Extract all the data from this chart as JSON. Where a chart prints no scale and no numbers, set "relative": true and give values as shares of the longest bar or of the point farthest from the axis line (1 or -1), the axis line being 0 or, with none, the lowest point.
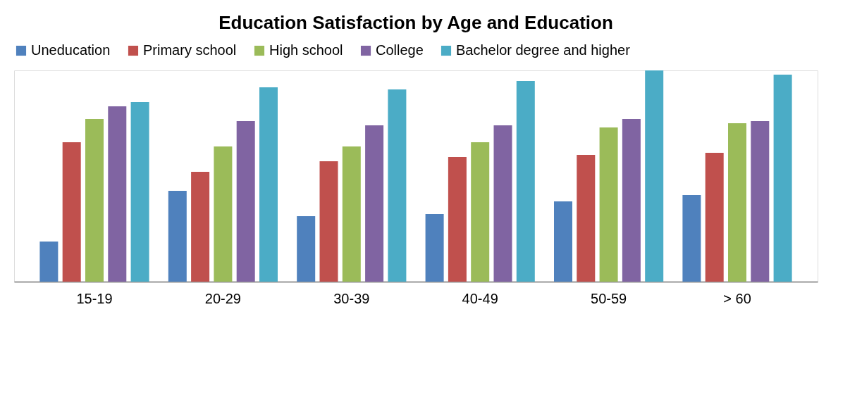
{
  "chart_data": {
    "type": "bar",
    "title": "Education Satisfaction by Age and Education",
    "categories": [
      "15-19",
      "20-29",
      "30-39",
      "40-49",
      "50-59",
      "> 60"
    ],
    "relative": true,
    "legend": "top",
    "grid": false,
    "series": [
      {
        "name": "Uneducation",
        "color": "#4f81bd",
        "values": [
          0.19,
          0.43,
          0.31,
          0.32,
          0.38,
          0.41
        ]
      },
      {
        "name": "Primary school",
        "color": "#c0504d",
        "values": [
          0.66,
          0.52,
          0.57,
          0.59,
          0.6,
          0.61
        ]
      },
      {
        "name": "High school",
        "color": "#9bbb59",
        "values": [
          0.77,
          0.64,
          0.64,
          0.66,
          0.73,
          0.75
        ]
      },
      {
        "name": "College",
        "color": "#8064a2",
        "values": [
          0.83,
          0.76,
          0.74,
          0.74,
          0.77,
          0.76
        ]
      },
      {
        "name": "Bachelor degree and higher",
        "color": "#4bacc6",
        "values": [
          0.85,
          0.92,
          0.91,
          0.95,
          1,
          0.98
        ]
      }
    ]
  }
}
